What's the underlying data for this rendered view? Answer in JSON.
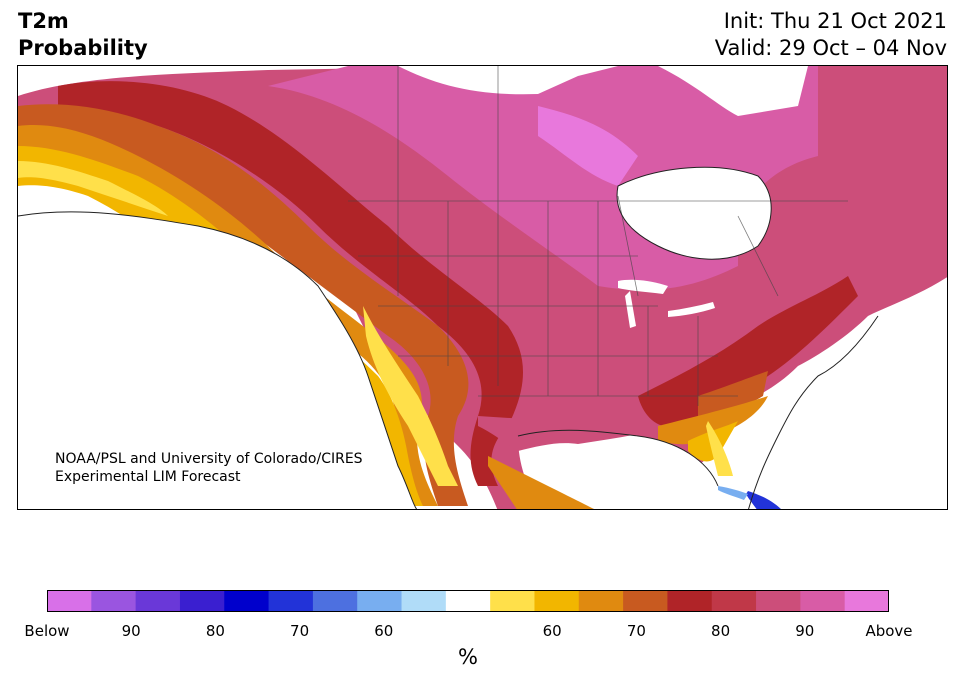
{
  "header": {
    "variable": "T2m",
    "product": "Probability",
    "init": "Init: Thu 21 Oct 2021",
    "valid": "Valid: 29 Oct – 04 Nov"
  },
  "map": {
    "credit_line1": "NOAA/PSL and University of Colorado/CIRES",
    "credit_line2": "Experimental LIM Forecast"
  },
  "colorbar": {
    "unit": "%",
    "colors": [
      "#d870e8",
      "#9a55e0",
      "#6a38d8",
      "#3a1fd0",
      "#0000cc",
      "#2233d8",
      "#4d70e0",
      "#78aef0",
      "#b0dcf8",
      "#ffffff",
      "#ffe04a",
      "#f2b600",
      "#e08a10",
      "#c85a20",
      "#b02428",
      "#c03848",
      "#cc4e7a",
      "#d85ca6",
      "#e878dc"
    ],
    "tick_labels": [
      "Below",
      "90",
      "80",
      "70",
      "60",
      "",
      "60",
      "70",
      "80",
      "90",
      "Above"
    ]
  }
}
